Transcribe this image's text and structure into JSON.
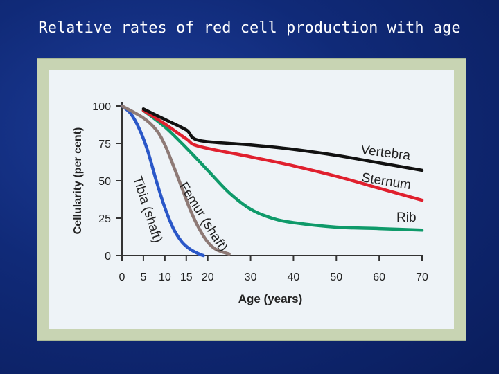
{
  "slide": {
    "title": "Relative rates of red cell production with age"
  },
  "chart_data": {
    "type": "line",
    "xlabel": "Age (years)",
    "ylabel": "Cellularity (per cent)",
    "xlim": [
      0,
      70
    ],
    "ylim": [
      0,
      100
    ],
    "x_ticks": [
      "0",
      "5",
      "10",
      "15",
      "20",
      "30",
      "40",
      "50",
      "60",
      "70"
    ],
    "y_ticks": [
      "0",
      "25",
      "50",
      "75",
      "100"
    ],
    "grid": false,
    "series": [
      {
        "name": "Vertebra",
        "color": "#111111",
        "points": [
          [
            5,
            98
          ],
          [
            10,
            91
          ],
          [
            15,
            84
          ],
          [
            18,
            77
          ],
          [
            30,
            74
          ],
          [
            40,
            71
          ],
          [
            50,
            67
          ],
          [
            60,
            62
          ],
          [
            70,
            57
          ]
        ]
      },
      {
        "name": "Sternum",
        "color": "#e0202e",
        "points": [
          [
            5,
            97
          ],
          [
            10,
            88
          ],
          [
            15,
            78
          ],
          [
            18,
            73
          ],
          [
            30,
            66
          ],
          [
            40,
            60
          ],
          [
            50,
            53
          ],
          [
            60,
            45
          ],
          [
            70,
            37
          ]
        ]
      },
      {
        "name": "Rib",
        "color": "#0f9a6a",
        "points": [
          [
            5,
            97
          ],
          [
            10,
            86
          ],
          [
            15,
            72
          ],
          [
            20,
            57
          ],
          [
            25,
            42
          ],
          [
            30,
            31
          ],
          [
            35,
            25
          ],
          [
            40,
            22
          ],
          [
            50,
            19
          ],
          [
            60,
            18
          ],
          [
            70,
            17
          ]
        ]
      },
      {
        "name": "Femur (shaft)",
        "color": "#8e7a76",
        "points": [
          [
            0,
            100
          ],
          [
            5,
            92
          ],
          [
            8,
            84
          ],
          [
            10,
            74
          ],
          [
            12,
            60
          ],
          [
            14,
            45
          ],
          [
            16,
            30
          ],
          [
            18,
            18
          ],
          [
            20,
            9
          ],
          [
            22,
            4
          ],
          [
            25,
            1
          ]
        ]
      },
      {
        "name": "Tibia (shaft)",
        "color": "#2a57c8",
        "points": [
          [
            0,
            100
          ],
          [
            2,
            95
          ],
          [
            4,
            85
          ],
          [
            6,
            70
          ],
          [
            8,
            50
          ],
          [
            10,
            32
          ],
          [
            12,
            18
          ],
          [
            14,
            9
          ],
          [
            16,
            4
          ],
          [
            18,
            1
          ],
          [
            19,
            0
          ]
        ]
      }
    ]
  }
}
